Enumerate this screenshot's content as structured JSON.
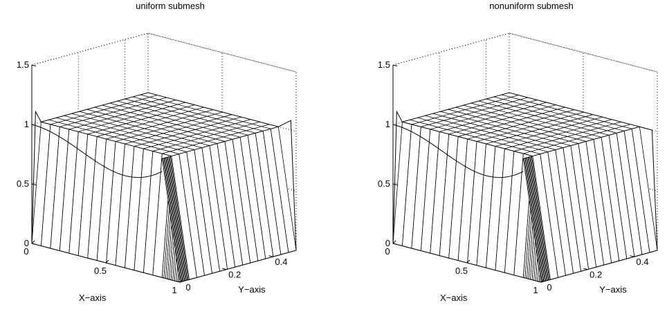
{
  "chart_data": [
    {
      "type": "surface",
      "title": "uniform submesh",
      "xlabel": "X−axis",
      "ylabel": "Y−axis",
      "zlabel": "",
      "xlim": [
        0,
        1
      ],
      "ylim": [
        0,
        0.5
      ],
      "zlim": [
        0,
        1.5
      ],
      "xticks": [
        "0",
        "0.5",
        "1"
      ],
      "xtick_values": [
        0,
        0.5,
        1
      ],
      "yticks": [
        "0",
        "0.2",
        "0.4"
      ],
      "ytick_values": [
        0,
        0.2,
        0.4
      ],
      "zticks": [
        "0",
        "0.5",
        "1",
        "1.5"
      ],
      "ztick_values": [
        0,
        0.5,
        1,
        1.5
      ],
      "grid": "dotted back walls",
      "mesh": "uniform",
      "nx": 24,
      "ny": 24,
      "surface_value": 1,
      "x_layer": 0.12,
      "y_layer": 0.08,
      "x_overshoot": 1.1,
      "y_overshoot": 1.08,
      "curve_drop": 0.35
    },
    {
      "type": "surface",
      "title": "nonuniform submesh",
      "xlabel": "X−axis",
      "ylabel": "Y−axis",
      "zlabel": "",
      "xlim": [
        0,
        1
      ],
      "ylim": [
        0,
        0.5
      ],
      "zlim": [
        0,
        1.5
      ],
      "xticks": [
        "0",
        "0.5",
        "1"
      ],
      "xtick_values": [
        0,
        0.5,
        1
      ],
      "yticks": [
        "0",
        "0.2",
        "0.4"
      ],
      "ytick_values": [
        0,
        0.2,
        0.4
      ],
      "zticks": [
        "0",
        "0.5",
        "1",
        "1.5"
      ],
      "ztick_values": [
        0,
        0.5,
        1,
        1.5
      ],
      "grid": "dotted back walls",
      "mesh": "nonuniform",
      "nx": 24,
      "ny": 24,
      "surface_value": 1,
      "x_layer": 0.12,
      "y_layer": 0.08,
      "x_overshoot": 1.1,
      "y_overshoot": 1.0,
      "curve_drop": 0.35
    }
  ]
}
